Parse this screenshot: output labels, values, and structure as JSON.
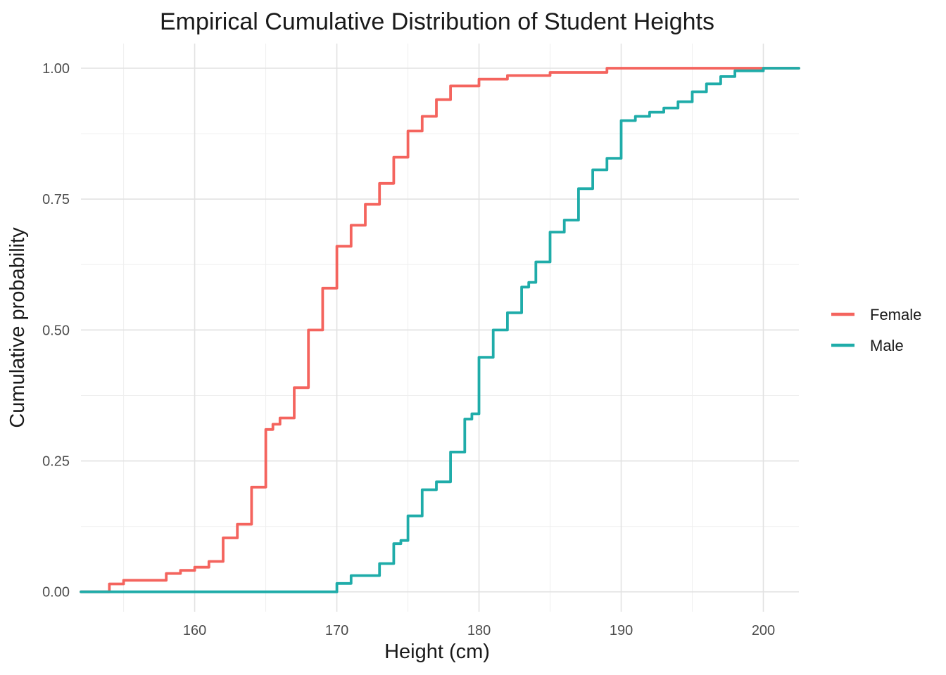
{
  "title": "Empirical Cumulative Distribution of Student Heights",
  "axes": {
    "x": {
      "label": "Height (cm)",
      "tick_labels": [
        "160",
        "170",
        "180",
        "190",
        "200"
      ],
      "tick_values": [
        160,
        170,
        180,
        190,
        200
      ],
      "minor_values": [
        155,
        165,
        175,
        185,
        195
      ],
      "domain": [
        152.0,
        202.5
      ]
    },
    "y": {
      "label": "Cumulative probability",
      "tick_labels": [
        "0.00",
        "0.25",
        "0.50",
        "0.75",
        "1.00"
      ],
      "tick_values": [
        0,
        0.25,
        0.5,
        0.75,
        1
      ],
      "minor_values": [
        0.125,
        0.375,
        0.625,
        0.875
      ],
      "domain": [
        -0.038,
        1.047
      ]
    }
  },
  "legend": {
    "items": [
      {
        "label": "Female"
      },
      {
        "label": "Male"
      }
    ]
  },
  "colors": {
    "background": "#ffffff",
    "grid_major": "#e2e2e2",
    "grid_minor": "#efefef",
    "title_text": "#1a1a1a",
    "tick_text": "#4d4d4d"
  },
  "chart_data": {
    "type": "line",
    "subtype": "ecdf-step",
    "title": "Empirical Cumulative Distribution of Student Heights",
    "xlabel": "Height (cm)",
    "ylabel": "Cumulative probability",
    "xlim": [
      152.0,
      202.5
    ],
    "ylim": [
      0,
      1
    ],
    "grid": "major+minor",
    "legend_position": "right",
    "series": [
      {
        "name": "Female",
        "color": "#f4645e",
        "points": [
          [
            154,
            0.015
          ],
          [
            155,
            0.022
          ],
          [
            158,
            0.035
          ],
          [
            159,
            0.041
          ],
          [
            160,
            0.047
          ],
          [
            161,
            0.058
          ],
          [
            162,
            0.103
          ],
          [
            163,
            0.129
          ],
          [
            164,
            0.2
          ],
          [
            165,
            0.31
          ],
          [
            165.5,
            0.32
          ],
          [
            166,
            0.332
          ],
          [
            167,
            0.39
          ],
          [
            168,
            0.5
          ],
          [
            169,
            0.58
          ],
          [
            170,
            0.66
          ],
          [
            171,
            0.7
          ],
          [
            172,
            0.74
          ],
          [
            173,
            0.78
          ],
          [
            174,
            0.83
          ],
          [
            175,
            0.88
          ],
          [
            176,
            0.908
          ],
          [
            177,
            0.94
          ],
          [
            178,
            0.966
          ],
          [
            180,
            0.979
          ],
          [
            182,
            0.986
          ],
          [
            185,
            0.992
          ],
          [
            189,
            1.0
          ]
        ]
      },
      {
        "name": "Male",
        "color": "#1faca9",
        "points": [
          [
            170,
            0.016
          ],
          [
            171,
            0.031
          ],
          [
            173,
            0.054
          ],
          [
            174,
            0.092
          ],
          [
            174.5,
            0.098
          ],
          [
            175,
            0.145
          ],
          [
            176,
            0.195
          ],
          [
            177,
            0.21
          ],
          [
            178,
            0.267
          ],
          [
            179,
            0.33
          ],
          [
            179.5,
            0.34
          ],
          [
            180,
            0.448
          ],
          [
            181,
            0.5
          ],
          [
            182,
            0.533
          ],
          [
            183,
            0.582
          ],
          [
            183.5,
            0.591
          ],
          [
            184,
            0.63
          ],
          [
            185,
            0.687
          ],
          [
            186,
            0.71
          ],
          [
            187,
            0.77
          ],
          [
            188,
            0.806
          ],
          [
            189,
            0.828
          ],
          [
            190,
            0.9
          ],
          [
            191,
            0.908
          ],
          [
            192,
            0.916
          ],
          [
            193,
            0.924
          ],
          [
            194,
            0.936
          ],
          [
            195,
            0.955
          ],
          [
            196,
            0.97
          ],
          [
            197,
            0.984
          ],
          [
            198,
            0.995
          ],
          [
            200,
            1.0
          ]
        ]
      }
    ]
  }
}
